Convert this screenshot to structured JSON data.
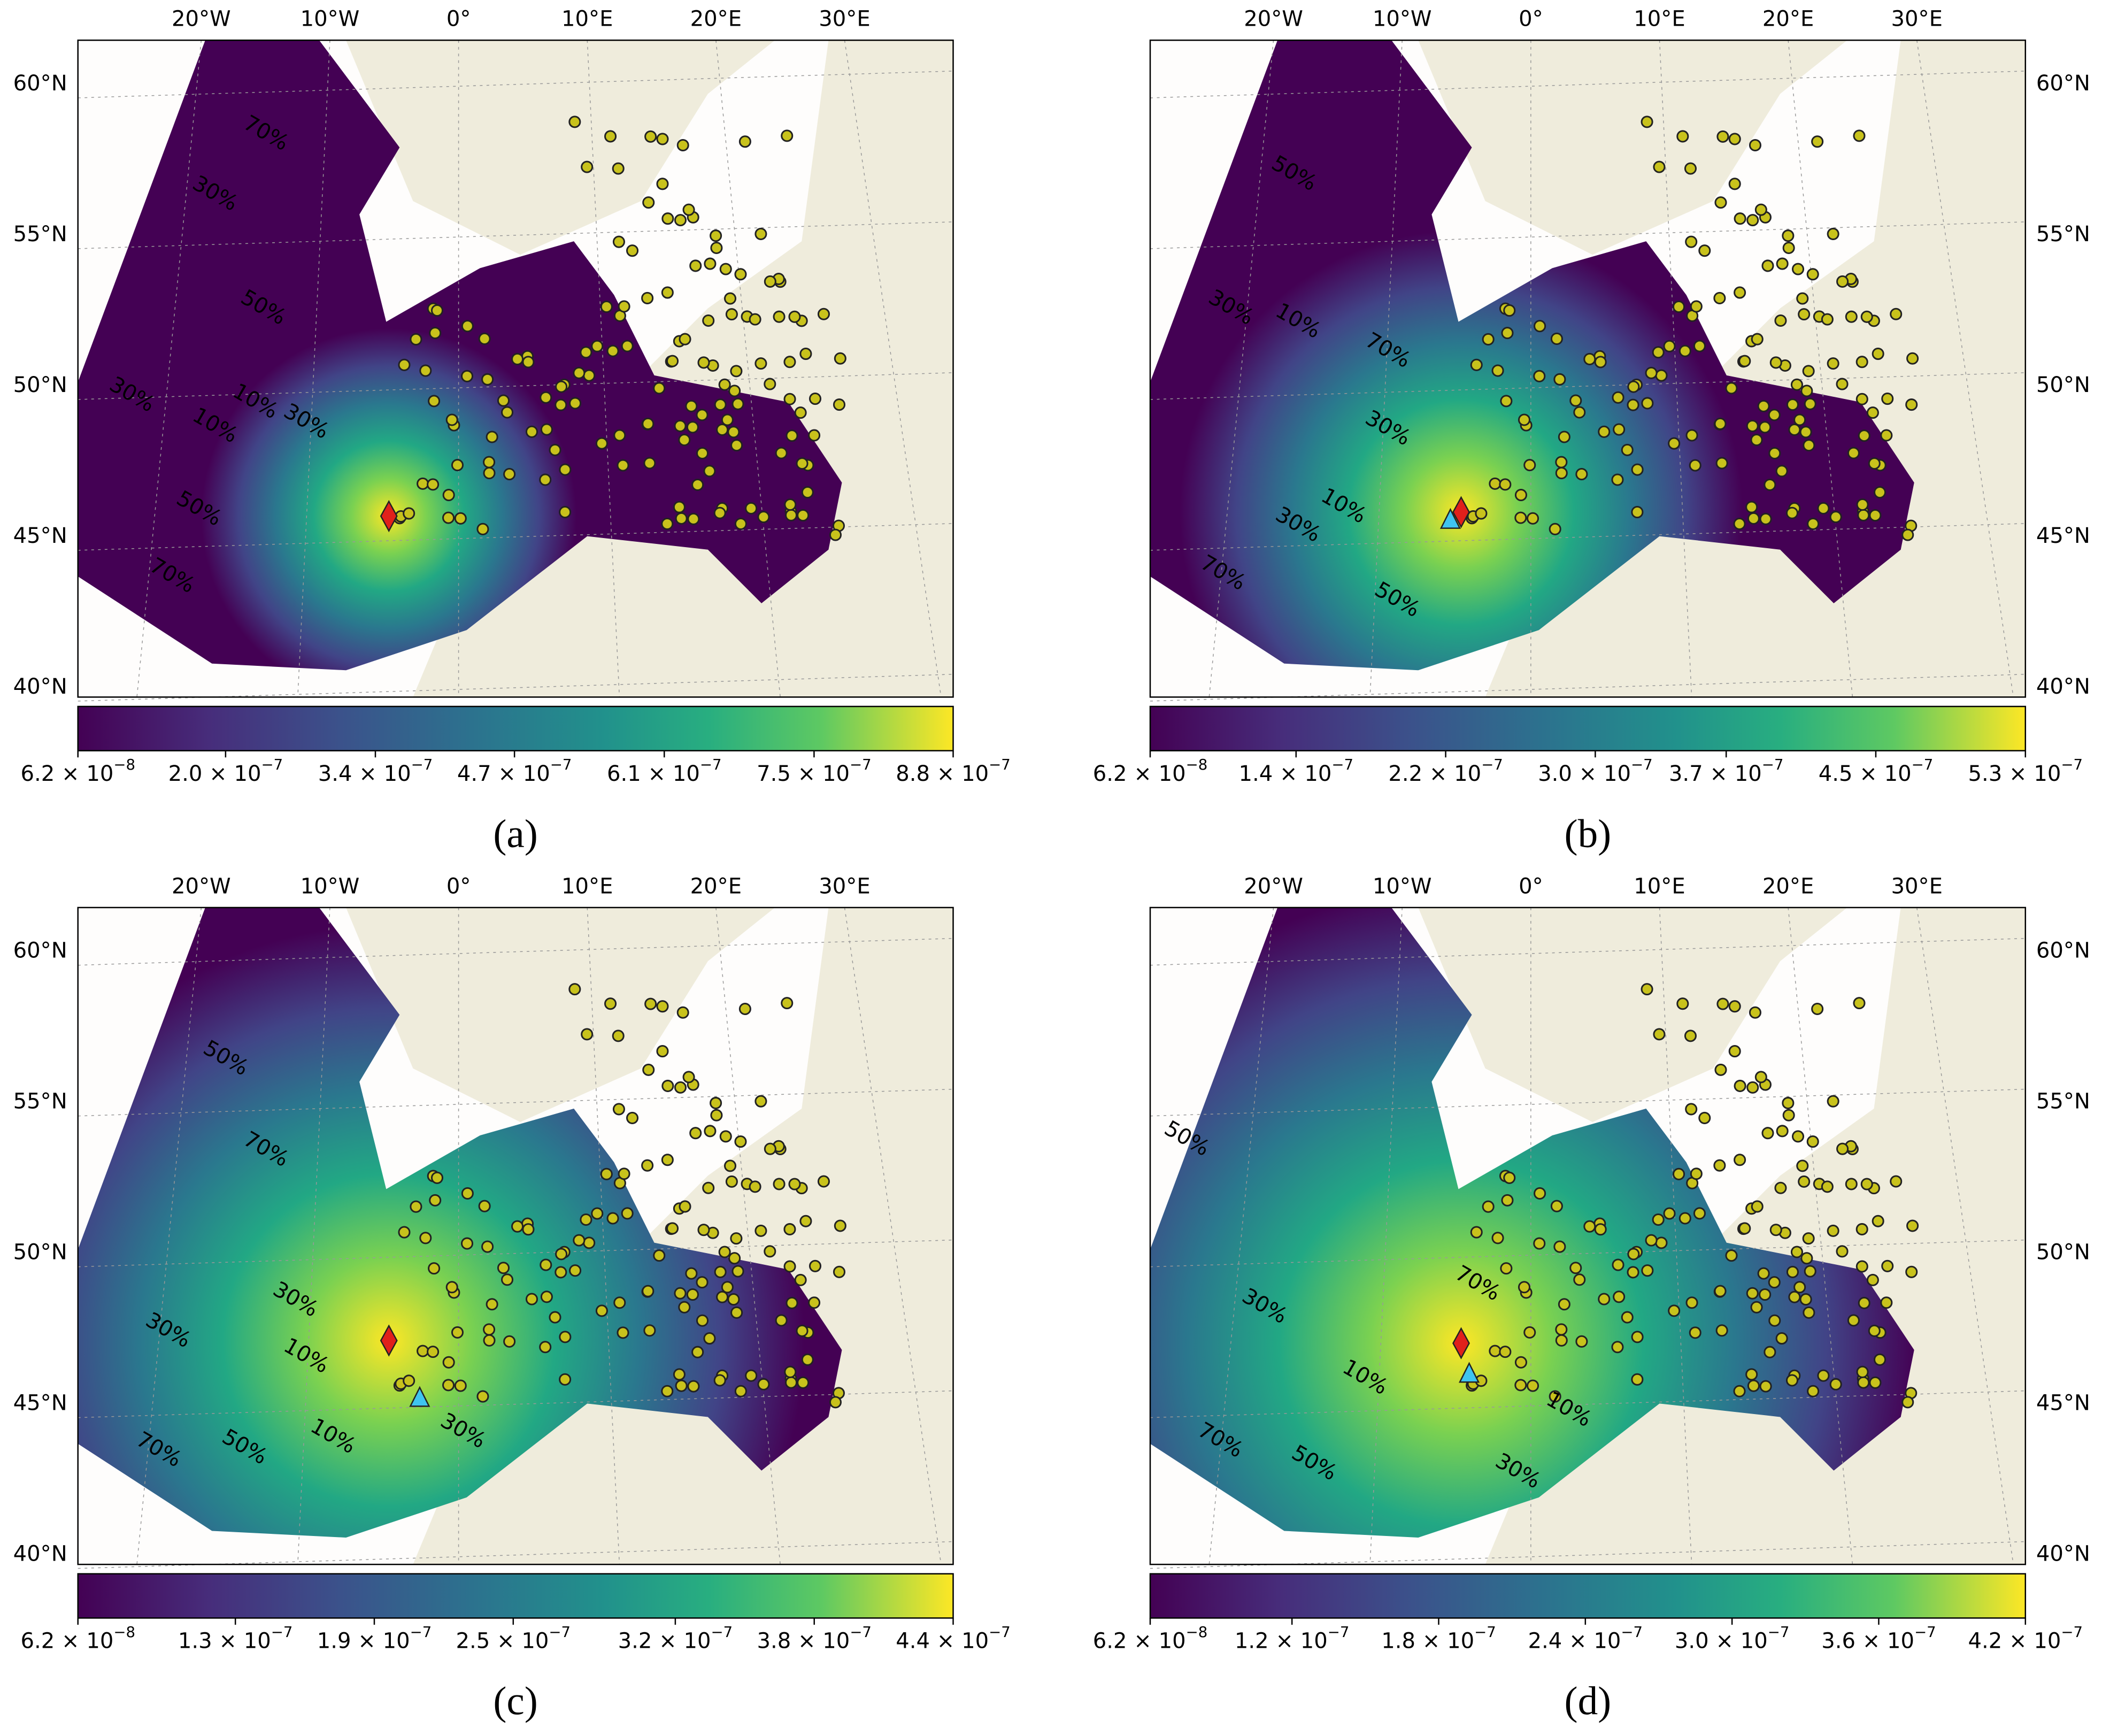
{
  "map_axes": {
    "lon_ticks": [
      {
        "value": -20,
        "label": "20°W"
      },
      {
        "value": -10,
        "label": "10°W"
      },
      {
        "value": 0,
        "label": "0°"
      },
      {
        "value": 10,
        "label": "10°E"
      },
      {
        "value": 20,
        "label": "20°E"
      },
      {
        "value": 30,
        "label": "30°E"
      }
    ],
    "lat_ticks": [
      {
        "value": 60,
        "label": "60°N"
      },
      {
        "value": 55,
        "label": "55°N"
      },
      {
        "value": 50,
        "label": "50°N"
      },
      {
        "value": 45,
        "label": "45°N"
      },
      {
        "value": 40,
        "label": "40°N"
      }
    ]
  },
  "panels": [
    {
      "label": "(a)",
      "colorbar": {
        "lim": [
          6.2e-08,
          8.8e-07
        ],
        "ticks": [
          {
            "value": 6.2e-08,
            "label": "6.2 × 10",
            "exponent": "−8"
          },
          {
            "value": 2e-07,
            "label": "2.0 × 10",
            "exponent": "−7"
          },
          {
            "value": 3.4e-07,
            "label": "3.4 × 10",
            "exponent": "−7"
          },
          {
            "value": 4.7e-07,
            "label": "4.7 × 10",
            "exponent": "−7"
          },
          {
            "value": 6.1e-07,
            "label": "6.1 × 10",
            "exponent": "−7"
          },
          {
            "value": 7.5e-07,
            "label": "7.5 × 10",
            "exponent": "−7"
          },
          {
            "value": 8.8e-07,
            "label": "8.8 × 10",
            "exponent": "−7"
          }
        ]
      },
      "contour_labels": [
        "70%",
        "30%",
        "50%",
        "10%",
        "30%",
        "10%",
        "30%",
        "50%",
        "70%"
      ]
    },
    {
      "label": "(b)",
      "colorbar": {
        "lim": [
          6.2e-08,
          5.3e-07
        ],
        "ticks": [
          {
            "value": 6.2e-08,
            "label": "6.2 × 10",
            "exponent": "−8"
          },
          {
            "value": 1.4e-07,
            "label": "1.4 × 10",
            "exponent": "−7"
          },
          {
            "value": 2.2e-07,
            "label": "2.2 × 10",
            "exponent": "−7"
          },
          {
            "value": 3e-07,
            "label": "3.0 × 10",
            "exponent": "−7"
          },
          {
            "value": 3.7e-07,
            "label": "3.7 × 10",
            "exponent": "−7"
          },
          {
            "value": 4.5e-07,
            "label": "4.5 × 10",
            "exponent": "−7"
          },
          {
            "value": 5.3e-07,
            "label": "5.3 × 10",
            "exponent": "−7"
          }
        ]
      },
      "contour_labels": [
        "50%",
        "30%",
        "10%",
        "70%",
        "30%",
        "10%",
        "30%",
        "70%",
        "50%"
      ]
    },
    {
      "label": "(c)",
      "colorbar": {
        "lim": [
          6.2e-08,
          4.4e-07
        ],
        "ticks": [
          {
            "value": 6.2e-08,
            "label": "6.2 × 10",
            "exponent": "−8"
          },
          {
            "value": 1.3e-07,
            "label": "1.3 × 10",
            "exponent": "−7"
          },
          {
            "value": 1.9e-07,
            "label": "1.9 × 10",
            "exponent": "−7"
          },
          {
            "value": 2.5e-07,
            "label": "2.5 × 10",
            "exponent": "−7"
          },
          {
            "value": 3.2e-07,
            "label": "3.2 × 10",
            "exponent": "−7"
          },
          {
            "value": 3.8e-07,
            "label": "3.8 × 10",
            "exponent": "−7"
          },
          {
            "value": 4.4e-07,
            "label": "4.4 × 10",
            "exponent": "−7"
          }
        ]
      },
      "contour_labels": [
        "50%",
        "70%",
        "30%",
        "30%",
        "10%",
        "10%",
        "30%",
        "50%",
        "70%"
      ]
    },
    {
      "label": "(d)",
      "colorbar": {
        "lim": [
          6.2e-08,
          4.2e-07
        ],
        "ticks": [
          {
            "value": 6.2e-08,
            "label": "6.2 × 10",
            "exponent": "−8"
          },
          {
            "value": 1.2e-07,
            "label": "1.2 × 10",
            "exponent": "−7"
          },
          {
            "value": 1.8e-07,
            "label": "1.8 × 10",
            "exponent": "−7"
          },
          {
            "value": 2.4e-07,
            "label": "2.4 × 10",
            "exponent": "−7"
          },
          {
            "value": 3e-07,
            "label": "3.0 × 10",
            "exponent": "−7"
          },
          {
            "value": 3.6e-07,
            "label": "3.6 × 10",
            "exponent": "−7"
          },
          {
            "value": 4.2e-07,
            "label": "4.2 × 10",
            "exponent": "−7"
          }
        ]
      },
      "contour_labels": [
        "50%",
        "70%",
        "30%",
        "10%",
        "10%",
        "30%",
        "70%",
        "50%"
      ]
    }
  ]
}
